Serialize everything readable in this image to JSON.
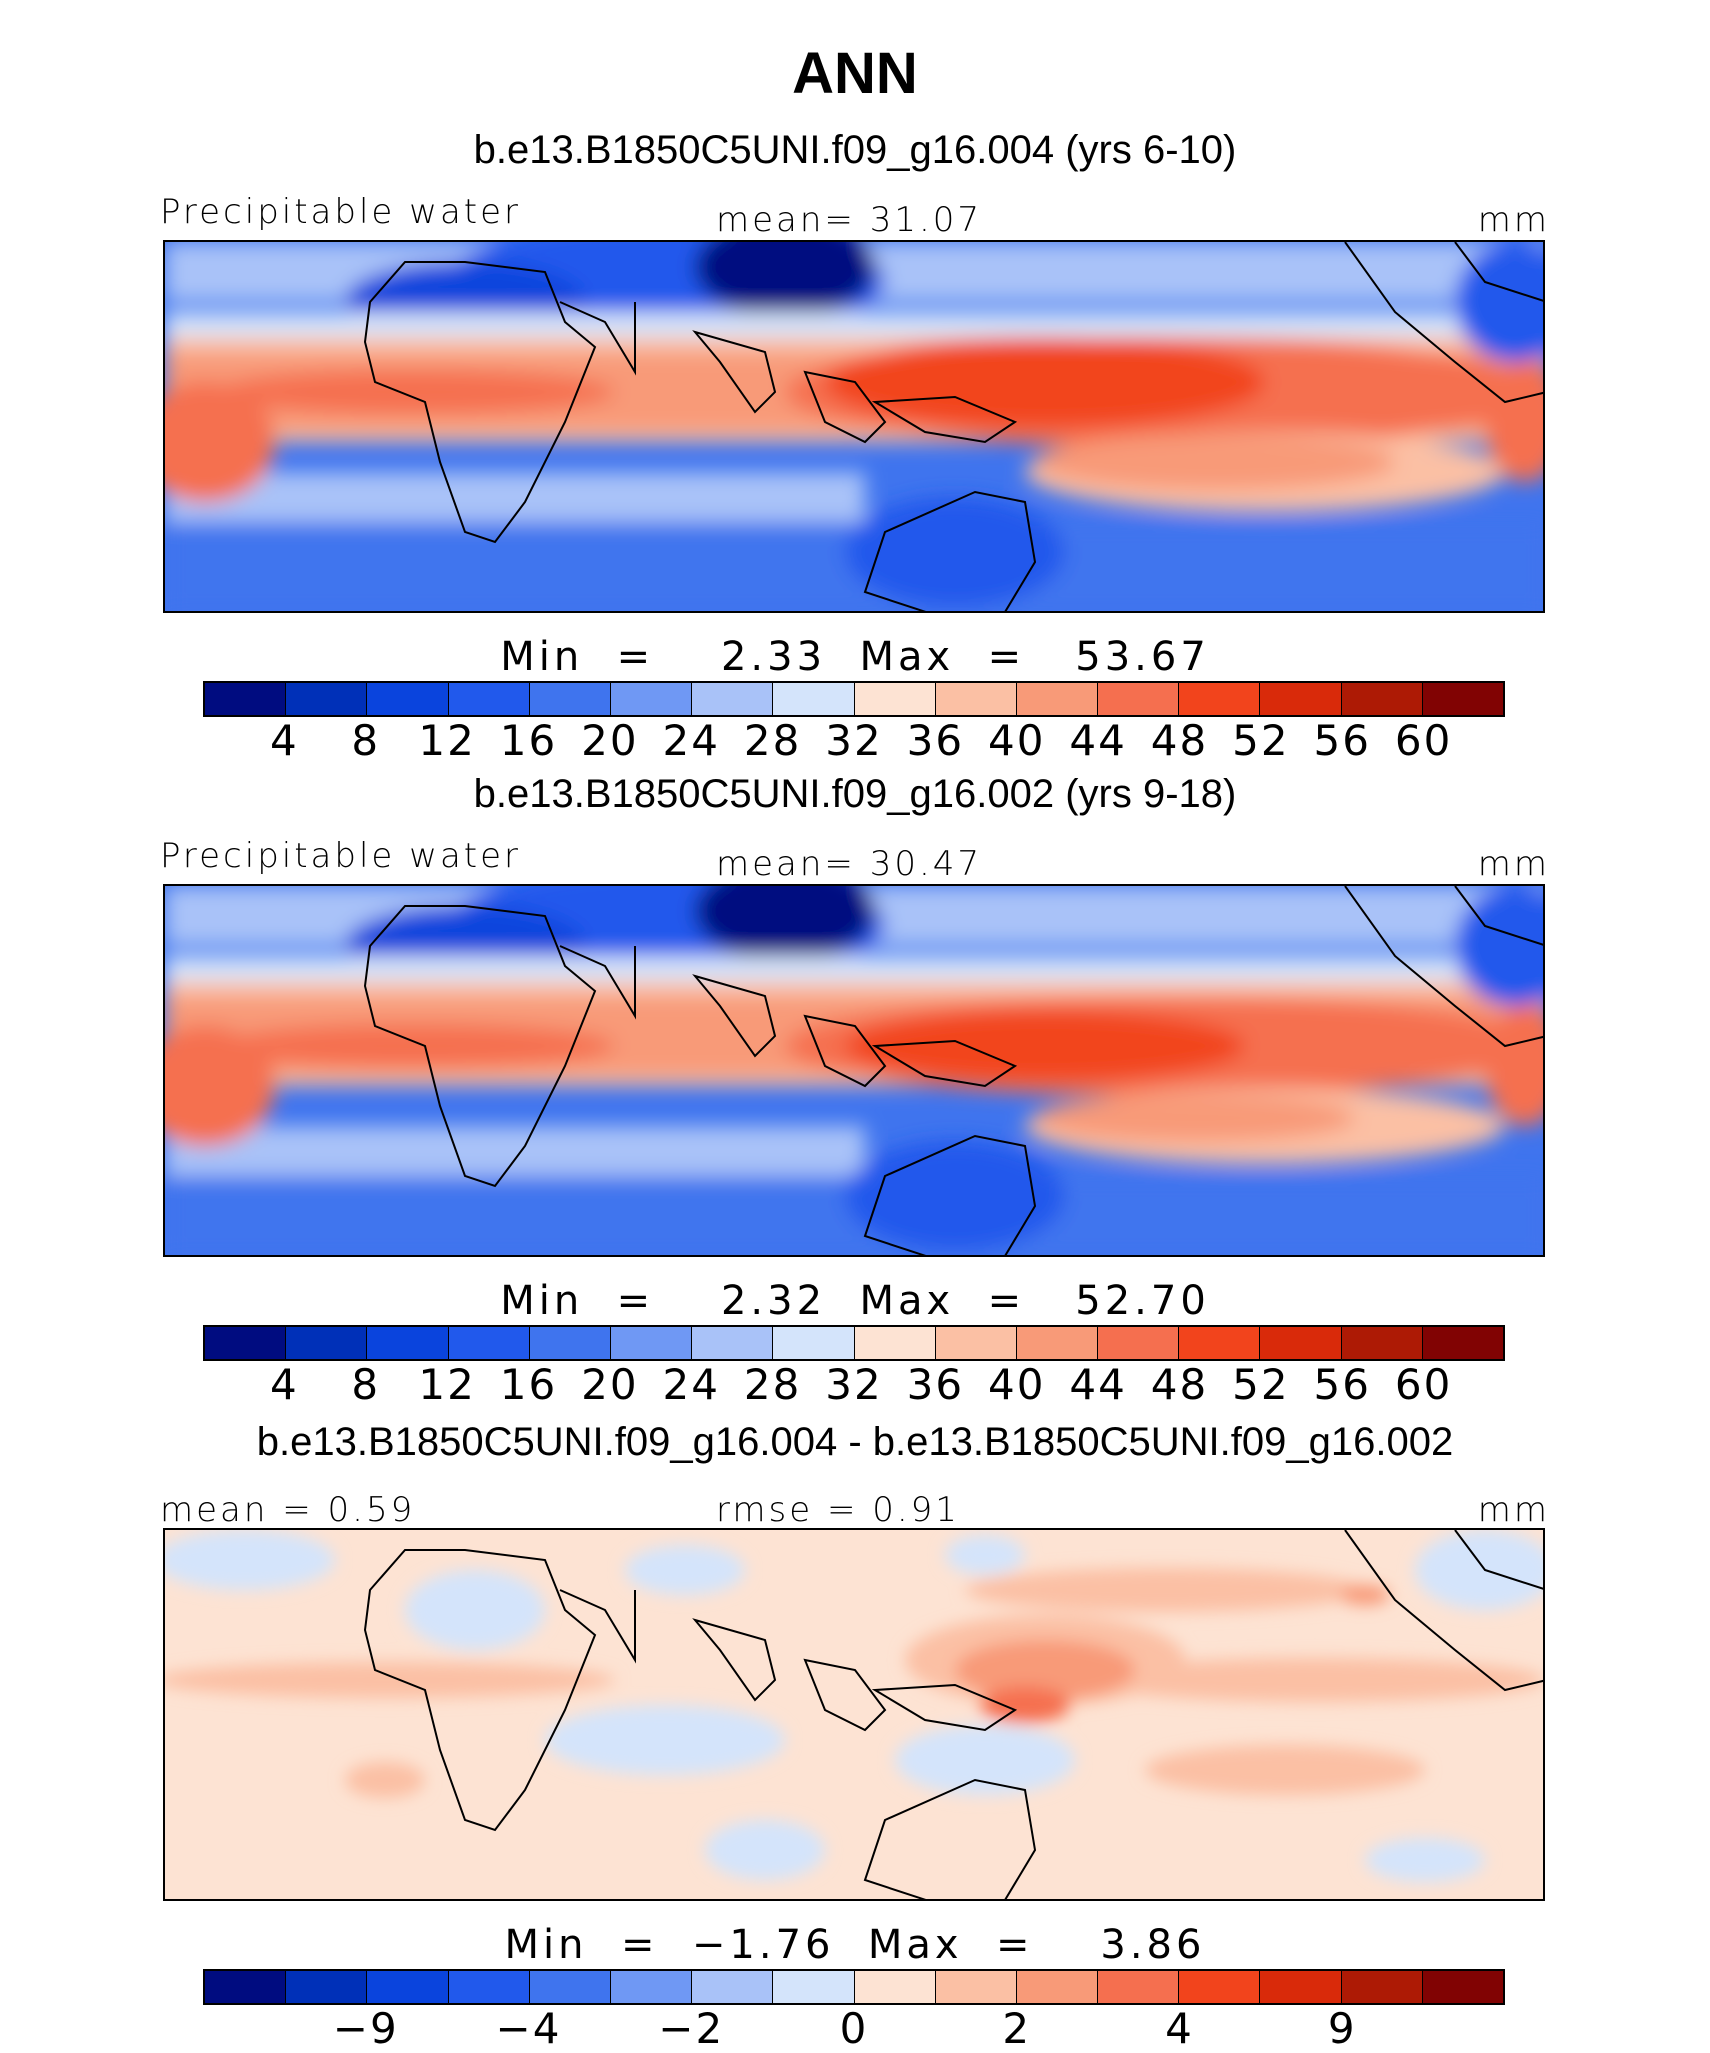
{
  "title": "ANN",
  "palette": [
    "#000c80",
    "#0030b8",
    "#0a44dd",
    "#2159ec",
    "#3f74ee",
    "#6f98f4",
    "#a9c2f8",
    "#d4e4fb",
    "#fde3d3",
    "#fbc0a4",
    "#f89a78",
    "#f56f4f",
    "#f2441c",
    "#d92a0a",
    "#ad1a05",
    "#810303"
  ],
  "panels": [
    {
      "title": "b.e13.B1850C5UNI.f09_g16.004 (yrs 6-10)",
      "left_label": "Precipitable water",
      "center_label": "mean=   31.07",
      "right_label": "mm",
      "minmax": "Min  =    2.33  Max  =   53.67",
      "ticks": [
        "4",
        "8",
        "12",
        "16",
        "20",
        "24",
        "28",
        "32",
        "36",
        "40",
        "44",
        "48",
        "52",
        "56",
        "60"
      ]
    },
    {
      "title": "b.e13.B1850C5UNI.f09_g16.002 (yrs 9-18)",
      "left_label": "Precipitable water",
      "center_label": "mean=   30.47",
      "right_label": "mm",
      "minmax": "Min  =    2.32  Max  =   52.70",
      "ticks": [
        "4",
        "8",
        "12",
        "16",
        "20",
        "24",
        "28",
        "32",
        "36",
        "40",
        "44",
        "48",
        "52",
        "56",
        "60"
      ]
    },
    {
      "title": "b.e13.B1850C5UNI.f09_g16.004 - b.e13.B1850C5UNI.f09_g16.002",
      "left_label": "mean =    0.59",
      "center_label": "rmse =    0.91",
      "right_label": "mm",
      "minmax": "Min  =  −1.76  Max  =    3.86",
      "ticks": [
        "−9",
        "−4",
        "−2",
        "0",
        "2",
        "4",
        "9"
      ]
    }
  ]
}
